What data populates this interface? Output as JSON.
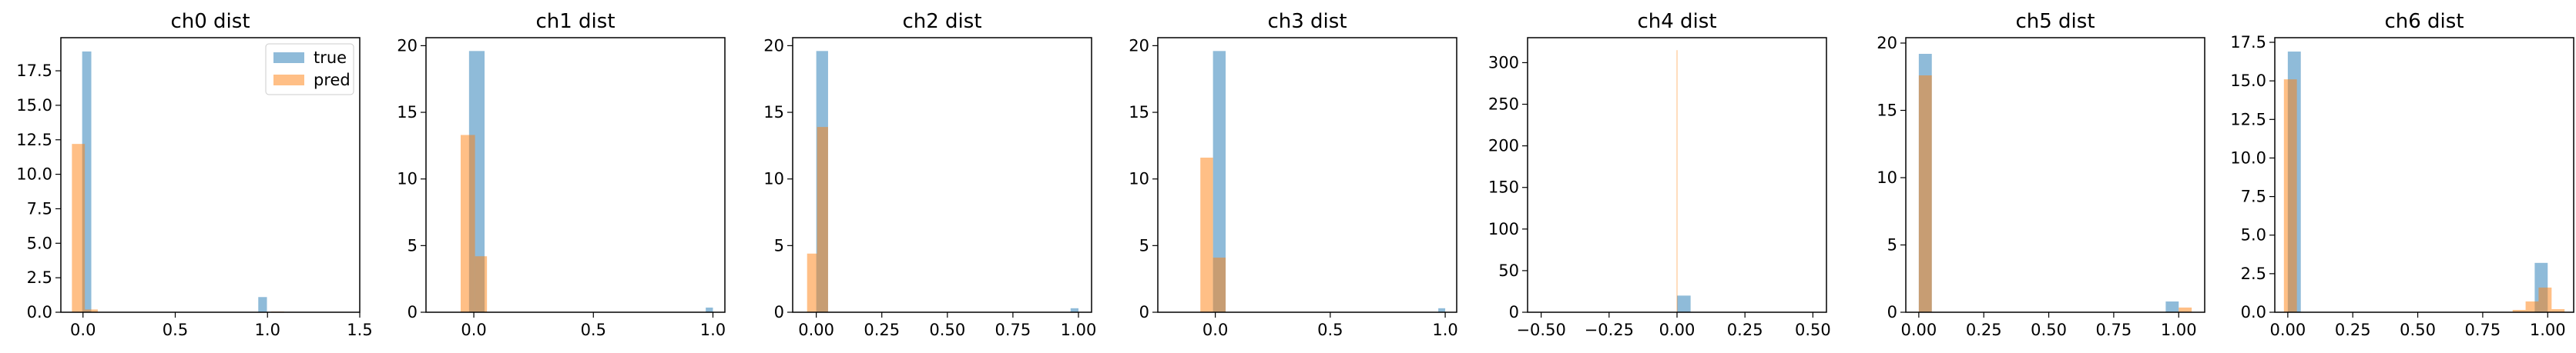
{
  "colors": {
    "true_series": "#1f77b4",
    "pred_series": "#ff7f0e",
    "axes": "#000000",
    "background": "#ffffff"
  },
  "chart_data": [
    {
      "type": "histogram",
      "title": "ch0 dist",
      "xlim": [
        -0.12,
        1.5
      ],
      "ylim": [
        0,
        19.9
      ],
      "xticks": [
        0.0,
        0.5,
        1.0,
        1.5
      ],
      "xtick_labels": [
        "0.0",
        "0.5",
        "1.0",
        "1.5"
      ],
      "yticks": [
        0.0,
        2.5,
        5.0,
        7.5,
        10.0,
        12.5,
        15.0,
        17.5
      ],
      "ytick_labels": [
        "0.0",
        "2.5",
        "5.0",
        "7.5",
        "10.0",
        "12.5",
        "15.0",
        "17.5"
      ],
      "legend": {
        "position": "upper right",
        "entries": [
          "true",
          "pred"
        ]
      },
      "series": [
        {
          "name": "true",
          "bins": [
            [
              -0.0045,
              0.045,
              18.9
            ],
            [
              0.95,
              0.997,
              1.1
            ]
          ]
        },
        {
          "name": "pred",
          "bins": [
            [
              -0.06,
              0.01,
              12.2
            ],
            [
              0.01,
              0.08,
              0.2
            ],
            [
              1.02,
              1.09,
              0.05
            ]
          ]
        }
      ]
    },
    {
      "type": "histogram",
      "title": "ch1 dist",
      "xlim": [
        -0.2,
        1.05
      ],
      "ylim": [
        0,
        20.6
      ],
      "xticks": [
        0.0,
        0.5,
        1.0
      ],
      "xtick_labels": [
        "0.0",
        "0.5",
        "1.0"
      ],
      "yticks": [
        0,
        5,
        10,
        15,
        20
      ],
      "ytick_labels": [
        "0",
        "5",
        "10",
        "15",
        "20"
      ],
      "series": [
        {
          "name": "true",
          "bins": [
            [
              -0.02,
              0.045,
              19.6
            ],
            [
              0.97,
              1.0,
              0.35
            ]
          ]
        },
        {
          "name": "pred",
          "bins": [
            [
              -0.055,
              0.005,
              13.3
            ],
            [
              0.005,
              0.055,
              4.2
            ]
          ]
        }
      ]
    },
    {
      "type": "histogram",
      "title": "ch2 dist",
      "xlim": [
        -0.09,
        1.05
      ],
      "ylim": [
        0,
        20.6
      ],
      "xticks": [
        0.0,
        0.25,
        0.5,
        0.75,
        1.0
      ],
      "xtick_labels": [
        "0.00",
        "0.25",
        "0.50",
        "0.75",
        "1.00"
      ],
      "yticks": [
        0,
        5,
        10,
        15,
        20
      ],
      "ytick_labels": [
        "0",
        "5",
        "10",
        "15",
        "20"
      ],
      "series": [
        {
          "name": "true",
          "bins": [
            [
              0.0,
              0.045,
              19.6
            ],
            [
              0.97,
              1.0,
              0.3
            ]
          ]
        },
        {
          "name": "pred",
          "bins": [
            [
              -0.035,
              0.003,
              4.4
            ],
            [
              0.003,
              0.045,
              13.9
            ]
          ]
        }
      ]
    },
    {
      "type": "histogram",
      "title": "ch3 dist",
      "xlim": [
        -0.25,
        1.05
      ],
      "ylim": [
        0,
        20.6
      ],
      "xticks": [
        0.0,
        0.5,
        1.0
      ],
      "xtick_labels": [
        "0.0",
        "0.5",
        "1.0"
      ],
      "yticks": [
        0,
        5,
        10,
        15,
        20
      ],
      "ytick_labels": [
        "0",
        "5",
        "10",
        "15",
        "20"
      ],
      "series": [
        {
          "name": "true",
          "bins": [
            [
              -0.01,
              0.045,
              19.6
            ],
            [
              0.97,
              1.0,
              0.3
            ]
          ]
        },
        {
          "name": "pred",
          "bins": [
            [
              -0.065,
              -0.01,
              11.6
            ],
            [
              -0.01,
              0.045,
              4.1
            ]
          ]
        }
      ]
    },
    {
      "type": "histogram",
      "title": "ch4 dist",
      "xlim": [
        -0.55,
        0.55
      ],
      "ylim": [
        0,
        330
      ],
      "xticks": [
        -0.5,
        -0.25,
        0.0,
        0.25,
        0.5
      ],
      "xtick_labels": [
        "−0.50",
        "−0.25",
        "0.00",
        "0.25",
        "0.50"
      ],
      "yticks": [
        0,
        50,
        100,
        150,
        200,
        250,
        300
      ],
      "ytick_labels": [
        "0",
        "50",
        "100",
        "150",
        "200",
        "250",
        "300"
      ],
      "series": [
        {
          "name": "true",
          "bins": [
            [
              0.0,
              0.05,
              20
            ]
          ]
        },
        {
          "name": "pred",
          "bins": [
            [
              -0.0015,
              0.0015,
              315
            ]
          ]
        }
      ]
    },
    {
      "type": "histogram",
      "title": "ch5 dist",
      "xlim": [
        -0.05,
        1.1
      ],
      "ylim": [
        0,
        20.4
      ],
      "xticks": [
        0.0,
        0.25,
        0.5,
        0.75,
        1.0
      ],
      "xtick_labels": [
        "0.00",
        "0.25",
        "0.50",
        "0.75",
        "1.00"
      ],
      "yticks": [
        0,
        5,
        10,
        15,
        20
      ],
      "ytick_labels": [
        "0",
        "5",
        "10",
        "15",
        "20"
      ],
      "series": [
        {
          "name": "true",
          "bins": [
            [
              0.0,
              0.05,
              19.2
            ],
            [
              0.95,
              1.0,
              0.8
            ]
          ]
        },
        {
          "name": "pred",
          "bins": [
            [
              0.0,
              0.05,
              17.6
            ],
            [
              1.0,
              1.05,
              0.35
            ]
          ]
        }
      ]
    },
    {
      "type": "histogram",
      "title": "ch6 dist",
      "xlim": [
        -0.05,
        1.1
      ],
      "ylim": [
        0,
        17.8
      ],
      "xticks": [
        0.0,
        0.25,
        0.5,
        0.75,
        1.0
      ],
      "xtick_labels": [
        "0.00",
        "0.25",
        "0.50",
        "0.75",
        "1.00"
      ],
      "yticks": [
        0.0,
        2.5,
        5.0,
        7.5,
        10.0,
        12.5,
        15.0,
        17.5
      ],
      "ytick_labels": [
        "0.0",
        "2.5",
        "5.0",
        "7.5",
        "10.0",
        "12.5",
        "15.0",
        "17.5"
      ],
      "series": [
        {
          "name": "true",
          "bins": [
            [
              0.0,
              0.05,
              16.9
            ],
            [
              0.95,
              1.0,
              3.2
            ]
          ]
        },
        {
          "name": "pred",
          "bins": [
            [
              -0.015,
              0.035,
              15.1
            ],
            [
              0.865,
              0.915,
              0.15
            ],
            [
              0.915,
              0.965,
              0.7
            ],
            [
              0.965,
              1.015,
              1.6
            ],
            [
              1.015,
              1.065,
              0.2
            ]
          ]
        }
      ]
    }
  ]
}
